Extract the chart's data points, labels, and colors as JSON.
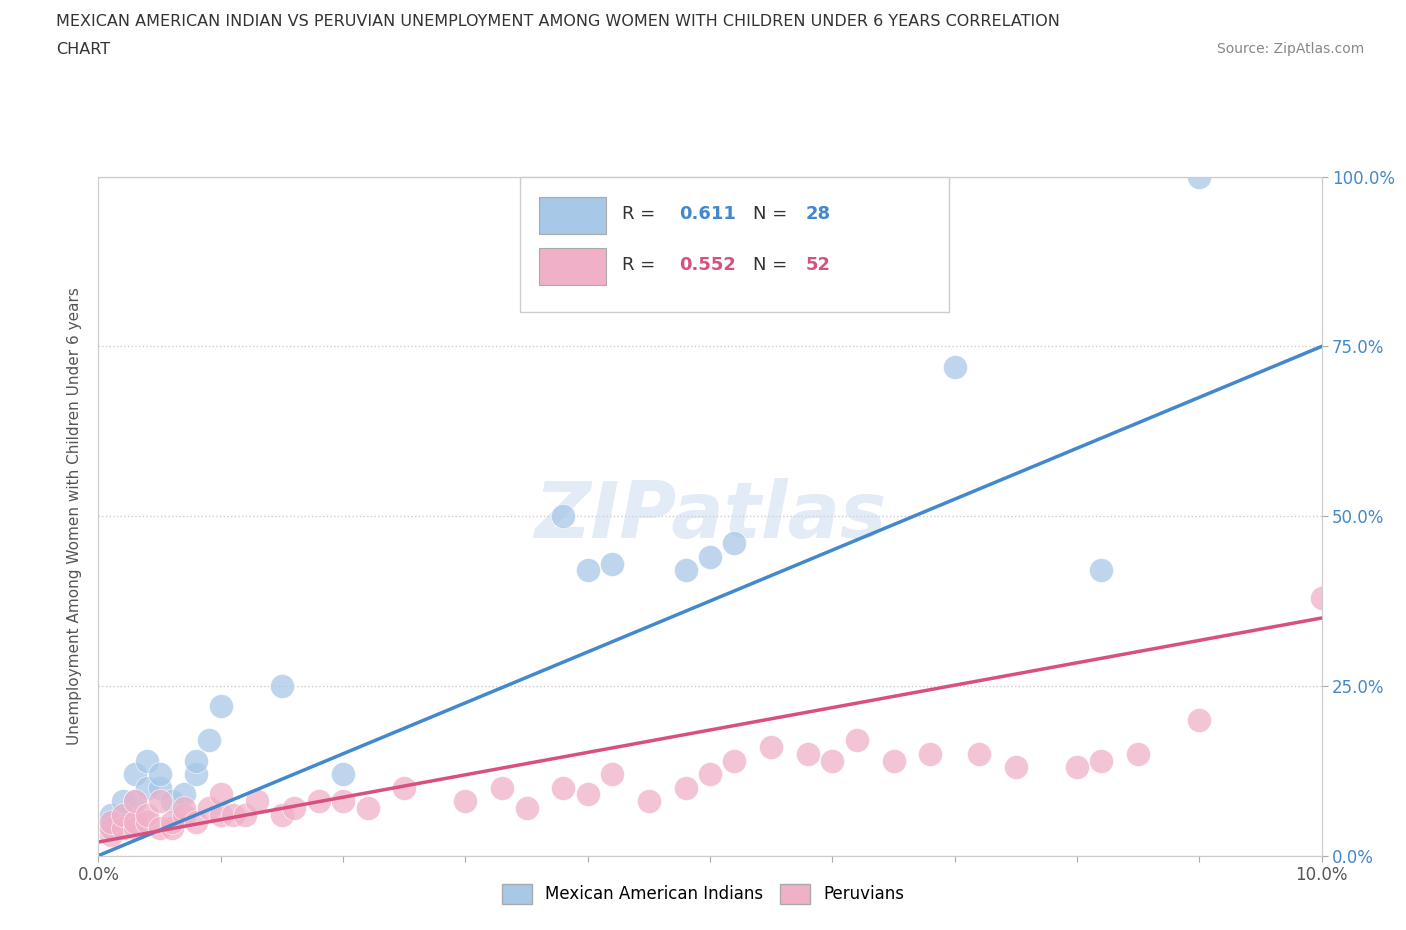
{
  "title_line1": "MEXICAN AMERICAN INDIAN VS PERUVIAN UNEMPLOYMENT AMONG WOMEN WITH CHILDREN UNDER 6 YEARS CORRELATION",
  "title_line2": "CHART",
  "source": "Source: ZipAtlas.com",
  "ylabel": "Unemployment Among Women with Children Under 6 years",
  "xmin": 0.0,
  "xmax": 0.1,
  "ymin": 0.0,
  "ymax": 1.0,
  "xticks": [
    0.0,
    0.01,
    0.02,
    0.03,
    0.04,
    0.05,
    0.06,
    0.07,
    0.08,
    0.09,
    0.1
  ],
  "yticks": [
    0.0,
    0.25,
    0.5,
    0.75,
    1.0
  ],
  "ytick_labels_right": [
    "0.0%",
    "25.0%",
    "50.0%",
    "75.0%",
    "100.0%"
  ],
  "xtick_labels": [
    "0.0%",
    "",
    "",
    "",
    "",
    "",
    "",
    "",
    "",
    "",
    "10.0%"
  ],
  "blue_R": 0.611,
  "blue_N": 28,
  "pink_R": 0.552,
  "pink_N": 52,
  "blue_color": "#a8c8e8",
  "blue_line_color": "#4488cc",
  "pink_color": "#f0b0c8",
  "pink_line_color": "#d85080",
  "legend_label_blue": "Mexican American Indians",
  "legend_label_pink": "Peruvians",
  "watermark": "ZIPatlas",
  "blue_points_x": [
    0.001,
    0.001,
    0.001,
    0.002,
    0.002,
    0.003,
    0.003,
    0.004,
    0.004,
    0.005,
    0.005,
    0.006,
    0.007,
    0.008,
    0.008,
    0.009,
    0.01,
    0.015,
    0.02,
    0.038,
    0.04,
    0.042,
    0.048,
    0.05,
    0.052,
    0.07,
    0.082,
    0.09
  ],
  "blue_points_y": [
    0.04,
    0.05,
    0.06,
    0.06,
    0.08,
    0.08,
    0.12,
    0.1,
    0.14,
    0.1,
    0.12,
    0.08,
    0.09,
    0.12,
    0.14,
    0.17,
    0.22,
    0.25,
    0.12,
    0.5,
    0.42,
    0.43,
    0.42,
    0.44,
    0.46,
    0.72,
    0.42,
    1.0
  ],
  "pink_points_x": [
    0.001,
    0.001,
    0.001,
    0.002,
    0.002,
    0.003,
    0.003,
    0.003,
    0.004,
    0.004,
    0.005,
    0.005,
    0.006,
    0.006,
    0.007,
    0.007,
    0.008,
    0.009,
    0.01,
    0.01,
    0.011,
    0.012,
    0.013,
    0.015,
    0.016,
    0.018,
    0.02,
    0.022,
    0.025,
    0.03,
    0.033,
    0.035,
    0.038,
    0.04,
    0.042,
    0.045,
    0.048,
    0.05,
    0.052,
    0.055,
    0.058,
    0.06,
    0.062,
    0.065,
    0.068,
    0.072,
    0.075,
    0.08,
    0.082,
    0.085,
    0.09,
    0.1
  ],
  "pink_points_y": [
    0.03,
    0.04,
    0.05,
    0.04,
    0.06,
    0.04,
    0.05,
    0.08,
    0.05,
    0.06,
    0.04,
    0.08,
    0.04,
    0.05,
    0.06,
    0.07,
    0.05,
    0.07,
    0.06,
    0.09,
    0.06,
    0.06,
    0.08,
    0.06,
    0.07,
    0.08,
    0.08,
    0.07,
    0.1,
    0.08,
    0.1,
    0.07,
    0.1,
    0.09,
    0.12,
    0.08,
    0.1,
    0.12,
    0.14,
    0.16,
    0.15,
    0.14,
    0.17,
    0.14,
    0.15,
    0.15,
    0.13,
    0.13,
    0.14,
    0.15,
    0.2,
    0.38
  ]
}
